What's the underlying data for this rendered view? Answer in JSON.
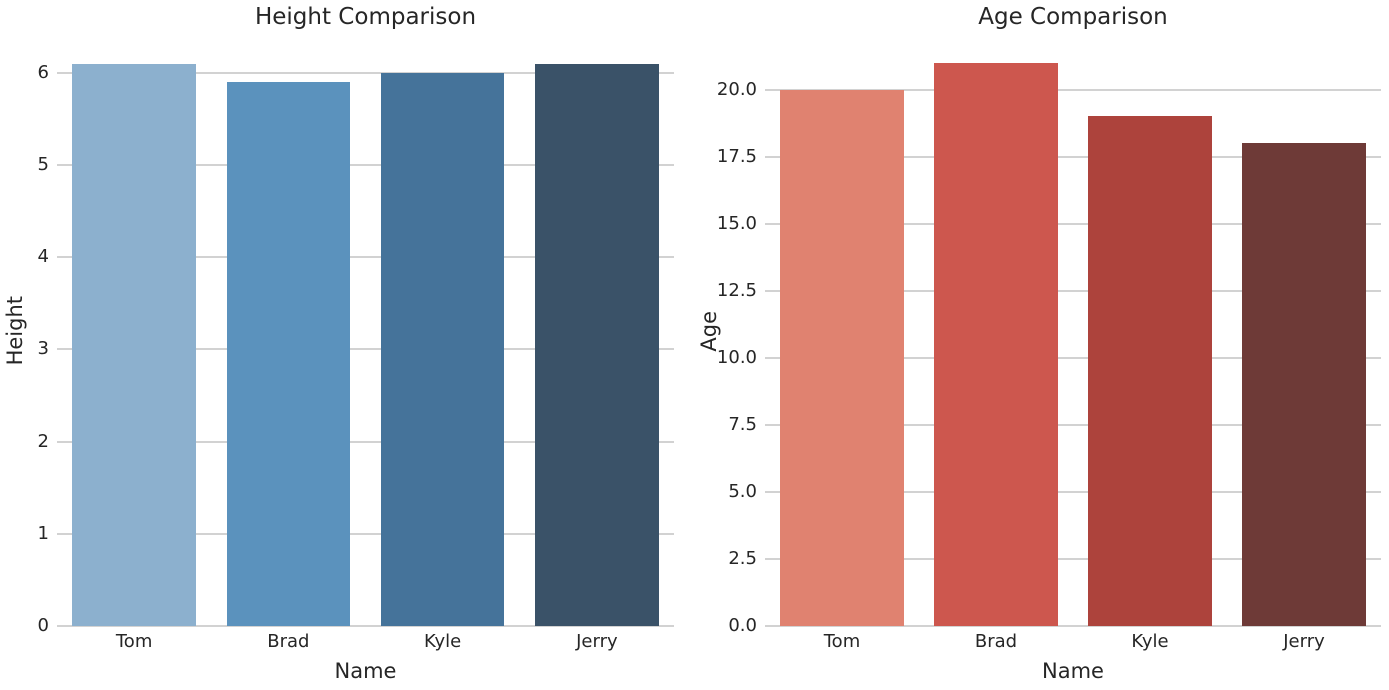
{
  "figure": {
    "background": "#ffffff",
    "grid_color": "#d2d2d2",
    "text_color": "#262626"
  },
  "chart_data": [
    {
      "type": "bar",
      "title": "Height Comparison",
      "xlabel": "Name",
      "ylabel": "Height",
      "categories": [
        "Tom",
        "Brad",
        "Kyle",
        "Jerry"
      ],
      "values": [
        6.1,
        5.9,
        6.0,
        6.1
      ],
      "ylim": [
        0,
        6.4
      ],
      "yticks": [
        0,
        1,
        2,
        3,
        4,
        5,
        6
      ],
      "ytick_labels": [
        "0",
        "1",
        "2",
        "3",
        "4",
        "5",
        "6"
      ],
      "bar_colors": [
        "#8cb0ce",
        "#5b92bd",
        "#45739a",
        "#3a5268"
      ],
      "grid": true,
      "legend": "none"
    },
    {
      "type": "bar",
      "title": "Age Comparison",
      "xlabel": "Name",
      "ylabel": "Age",
      "categories": [
        "Tom",
        "Brad",
        "Kyle",
        "Jerry"
      ],
      "values": [
        20,
        21,
        19,
        18
      ],
      "ylim": [
        0,
        22
      ],
      "yticks": [
        0,
        2.5,
        5,
        7.5,
        10,
        12.5,
        15,
        17.5,
        20
      ],
      "ytick_labels": [
        "0.0",
        "2.5",
        "5.0",
        "7.5",
        "10.0",
        "12.5",
        "15.0",
        "17.5",
        "20.0"
      ],
      "bar_colors": [
        "#e08270",
        "#cd574e",
        "#ad433c",
        "#6e3a37"
      ],
      "grid": true,
      "legend": "none"
    }
  ]
}
